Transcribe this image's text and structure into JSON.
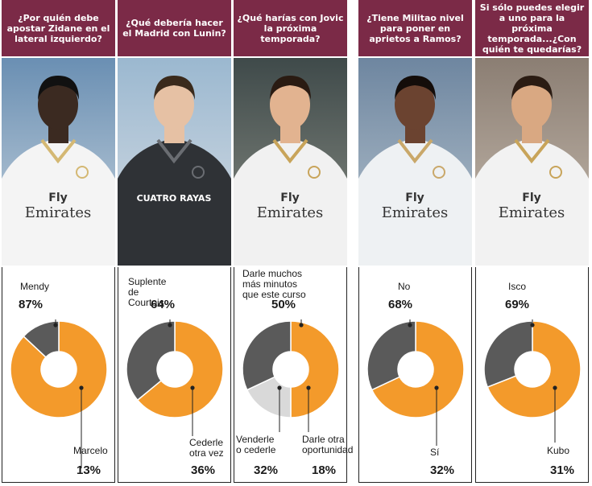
{
  "colors": {
    "header_bg": "#7b2a47",
    "orange": "#f39a2b",
    "dark_gray": "#5a5a5a",
    "light_gray": "#d9d9d9"
  },
  "chart_data": [
    {
      "type": "pie",
      "title": "¿Por quién debe apostar Zidane en el lateral izquierdo?",
      "slices": [
        {
          "label": "Mendy",
          "value": 87,
          "display": "87%",
          "color": "#f39a2b"
        },
        {
          "label": "Marcelo",
          "value": 13,
          "display": "13%",
          "color": "#5a5a5a"
        }
      ]
    },
    {
      "type": "pie",
      "title": "¿Qué debería hacer el Madrid con Lunin?",
      "slices": [
        {
          "label": "Suplente de Courtois",
          "value": 64,
          "display": "64%",
          "color": "#f39a2b"
        },
        {
          "label": "Cederle otra vez",
          "value": 36,
          "display": "36%",
          "color": "#5a5a5a"
        }
      ]
    },
    {
      "type": "pie",
      "title": "¿Qué harías con Jovic la próxima temporada?",
      "slices": [
        {
          "label": "Darle muchos más minutos que este curso",
          "value": 50,
          "display": "50%",
          "color": "#f39a2b"
        },
        {
          "label": "Darle otra oportunidad",
          "value": 18,
          "display": "18%",
          "color": "#d9d9d9"
        },
        {
          "label": "Venderle o cederle",
          "value": 32,
          "display": "32%",
          "color": "#5a5a5a"
        }
      ]
    },
    {
      "type": "pie",
      "title": "¿Tiene Militao nivel para poner en aprietos a Ramos?",
      "slices": [
        {
          "label": "No",
          "value": 68,
          "display": "68%",
          "color": "#f39a2b"
        },
        {
          "label": "Sí",
          "value": 32,
          "display": "32%",
          "color": "#5a5a5a"
        }
      ]
    },
    {
      "type": "pie",
      "title": "Si sólo puedes elegir a uno para la próxima temporada...¿Con quién te quedarías?",
      "slices": [
        {
          "label": "Isco",
          "value": 69,
          "display": "69%",
          "color": "#f39a2b"
        },
        {
          "label": "Kubo",
          "value": 31,
          "display": "31%",
          "color": "#5a5a5a"
        }
      ]
    }
  ],
  "photo_text": {
    "sponsor_a": "Fly",
    "sponsor_b": "Emirates",
    "sponsor_c": "CUATRO RAYAS"
  }
}
